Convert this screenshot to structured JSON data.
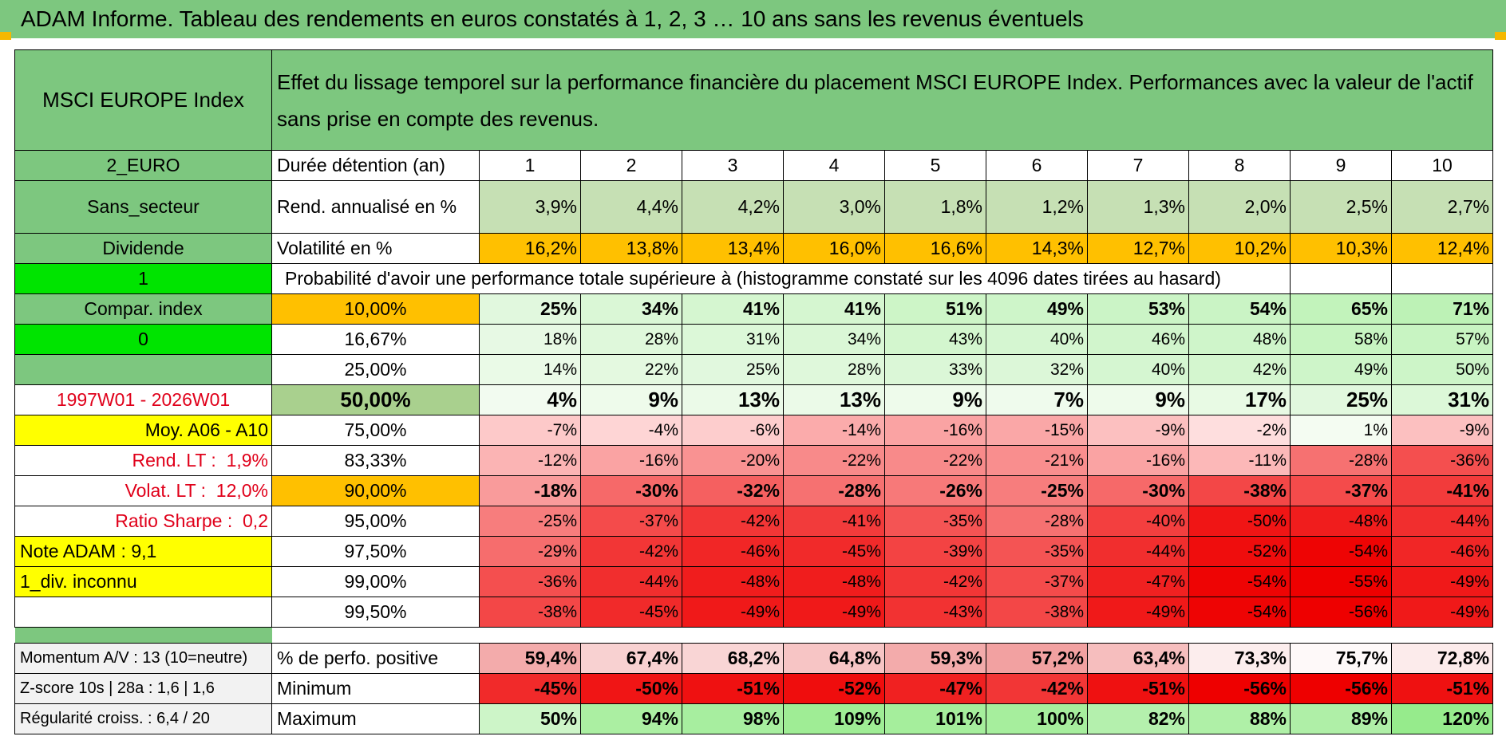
{
  "title": "ADAM Informe. Tableau des rendements en euros constatés à 1, 2, 3 … 10 ans sans les revenus éventuels",
  "header": {
    "index_name": "MSCI EUROPE Index",
    "description": "Effet du lissage temporel sur la performance financière du placement MSCI EUROPE Index. Performances avec la valeur de l'actif sans prise en compte des revenus."
  },
  "left_labels": {
    "currency": "2_EURO",
    "sector": "Sans_secteur",
    "dividend": "Dividende",
    "flag1": "1",
    "compar": "Compar. index",
    "flag0": "0",
    "blank": "",
    "period": "1997W01 - 2026W01",
    "moy": "Moy. A06 - A10",
    "rend_lt_label": "Rend. LT :",
    "rend_lt_value": "1,9%",
    "volat_lt_label": "Volat. LT :",
    "volat_lt_value": "12,0%",
    "sharpe_label": "Ratio Sharpe :",
    "sharpe_value": "0,2",
    "note": "Note ADAM : 9,1",
    "div_unknown": "1_div. inconnu",
    "momentum": "Momentum A/V : 13 (10=neutre)",
    "zscore": "Z-score 10s | 28a : 1,6 | 1,6",
    "regularity": "Régularité croiss. : 6,4 / 20"
  },
  "row_labels": {
    "duration": "Durée détention (an)",
    "rend": "Rend. annualisé en %",
    "vol": "Volatilité en %",
    "prob": "Probabilité d'avoir une performance totale supérieure à (histogramme constaté sur les 4096 dates tirées au hasard)",
    "positive": "% de perfo. positive",
    "minimum": "Minimum",
    "maximum": "Maximum"
  },
  "years": [
    "1",
    "2",
    "3",
    "4",
    "5",
    "6",
    "7",
    "8",
    "9",
    "10"
  ],
  "rend": [
    "3,9%",
    "4,4%",
    "4,2%",
    "3,0%",
    "1,8%",
    "1,2%",
    "1,3%",
    "2,0%",
    "2,5%",
    "2,7%"
  ],
  "vol": [
    "16,2%",
    "13,8%",
    "13,4%",
    "16,0%",
    "16,6%",
    "14,3%",
    "12,7%",
    "10,2%",
    "10,3%",
    "12,4%"
  ],
  "quantiles": [
    {
      "label": "10,00%",
      "values": [
        "25%",
        "34%",
        "41%",
        "41%",
        "51%",
        "49%",
        "53%",
        "54%",
        "65%",
        "71%"
      ]
    },
    {
      "label": "16,67%",
      "values": [
        "18%",
        "28%",
        "31%",
        "34%",
        "43%",
        "40%",
        "46%",
        "48%",
        "58%",
        "57%"
      ]
    },
    {
      "label": "25,00%",
      "values": [
        "14%",
        "22%",
        "25%",
        "28%",
        "33%",
        "32%",
        "40%",
        "42%",
        "49%",
        "50%"
      ]
    },
    {
      "label": "50,00%",
      "values": [
        "4%",
        "9%",
        "13%",
        "13%",
        "9%",
        "7%",
        "9%",
        "17%",
        "25%",
        "31%"
      ]
    },
    {
      "label": "75,00%",
      "values": [
        "-7%",
        "-4%",
        "-6%",
        "-14%",
        "-16%",
        "-15%",
        "-9%",
        "-2%",
        "1%",
        "-9%"
      ]
    },
    {
      "label": "83,33%",
      "values": [
        "-12%",
        "-16%",
        "-20%",
        "-22%",
        "-22%",
        "-21%",
        "-16%",
        "-11%",
        "-28%",
        "-36%"
      ]
    },
    {
      "label": "90,00%",
      "values": [
        "-18%",
        "-30%",
        "-32%",
        "-28%",
        "-26%",
        "-25%",
        "-30%",
        "-38%",
        "-37%",
        "-41%"
      ]
    },
    {
      "label": "95,00%",
      "values": [
        "-25%",
        "-37%",
        "-42%",
        "-41%",
        "-35%",
        "-28%",
        "-40%",
        "-50%",
        "-48%",
        "-44%"
      ]
    },
    {
      "label": "97,50%",
      "values": [
        "-29%",
        "-42%",
        "-46%",
        "-45%",
        "-39%",
        "-35%",
        "-44%",
        "-52%",
        "-54%",
        "-46%"
      ]
    },
    {
      "label": "99,00%",
      "values": [
        "-36%",
        "-44%",
        "-48%",
        "-48%",
        "-42%",
        "-37%",
        "-47%",
        "-54%",
        "-55%",
        "-49%"
      ]
    },
    {
      "label": "99,50%",
      "values": [
        "-38%",
        "-45%",
        "-49%",
        "-49%",
        "-43%",
        "-38%",
        "-49%",
        "-54%",
        "-56%",
        "-49%"
      ]
    }
  ],
  "positive": [
    "59,4%",
    "67,4%",
    "68,2%",
    "64,8%",
    "59,3%",
    "57,2%",
    "63,4%",
    "73,3%",
    "75,7%",
    "72,8%"
  ],
  "minimum": [
    "-45%",
    "-50%",
    "-51%",
    "-52%",
    "-47%",
    "-42%",
    "-51%",
    "-56%",
    "-56%",
    "-51%"
  ],
  "maximum": [
    "50%",
    "94%",
    "98%",
    "109%",
    "101%",
    "100%",
    "82%",
    "88%",
    "89%",
    "120%"
  ],
  "colors": {
    "header_green": "#7dc77f",
    "bright_green": "#00e400",
    "yellow": "#ffff00",
    "orange": "#ffc000",
    "red_text": "#e0001a"
  }
}
